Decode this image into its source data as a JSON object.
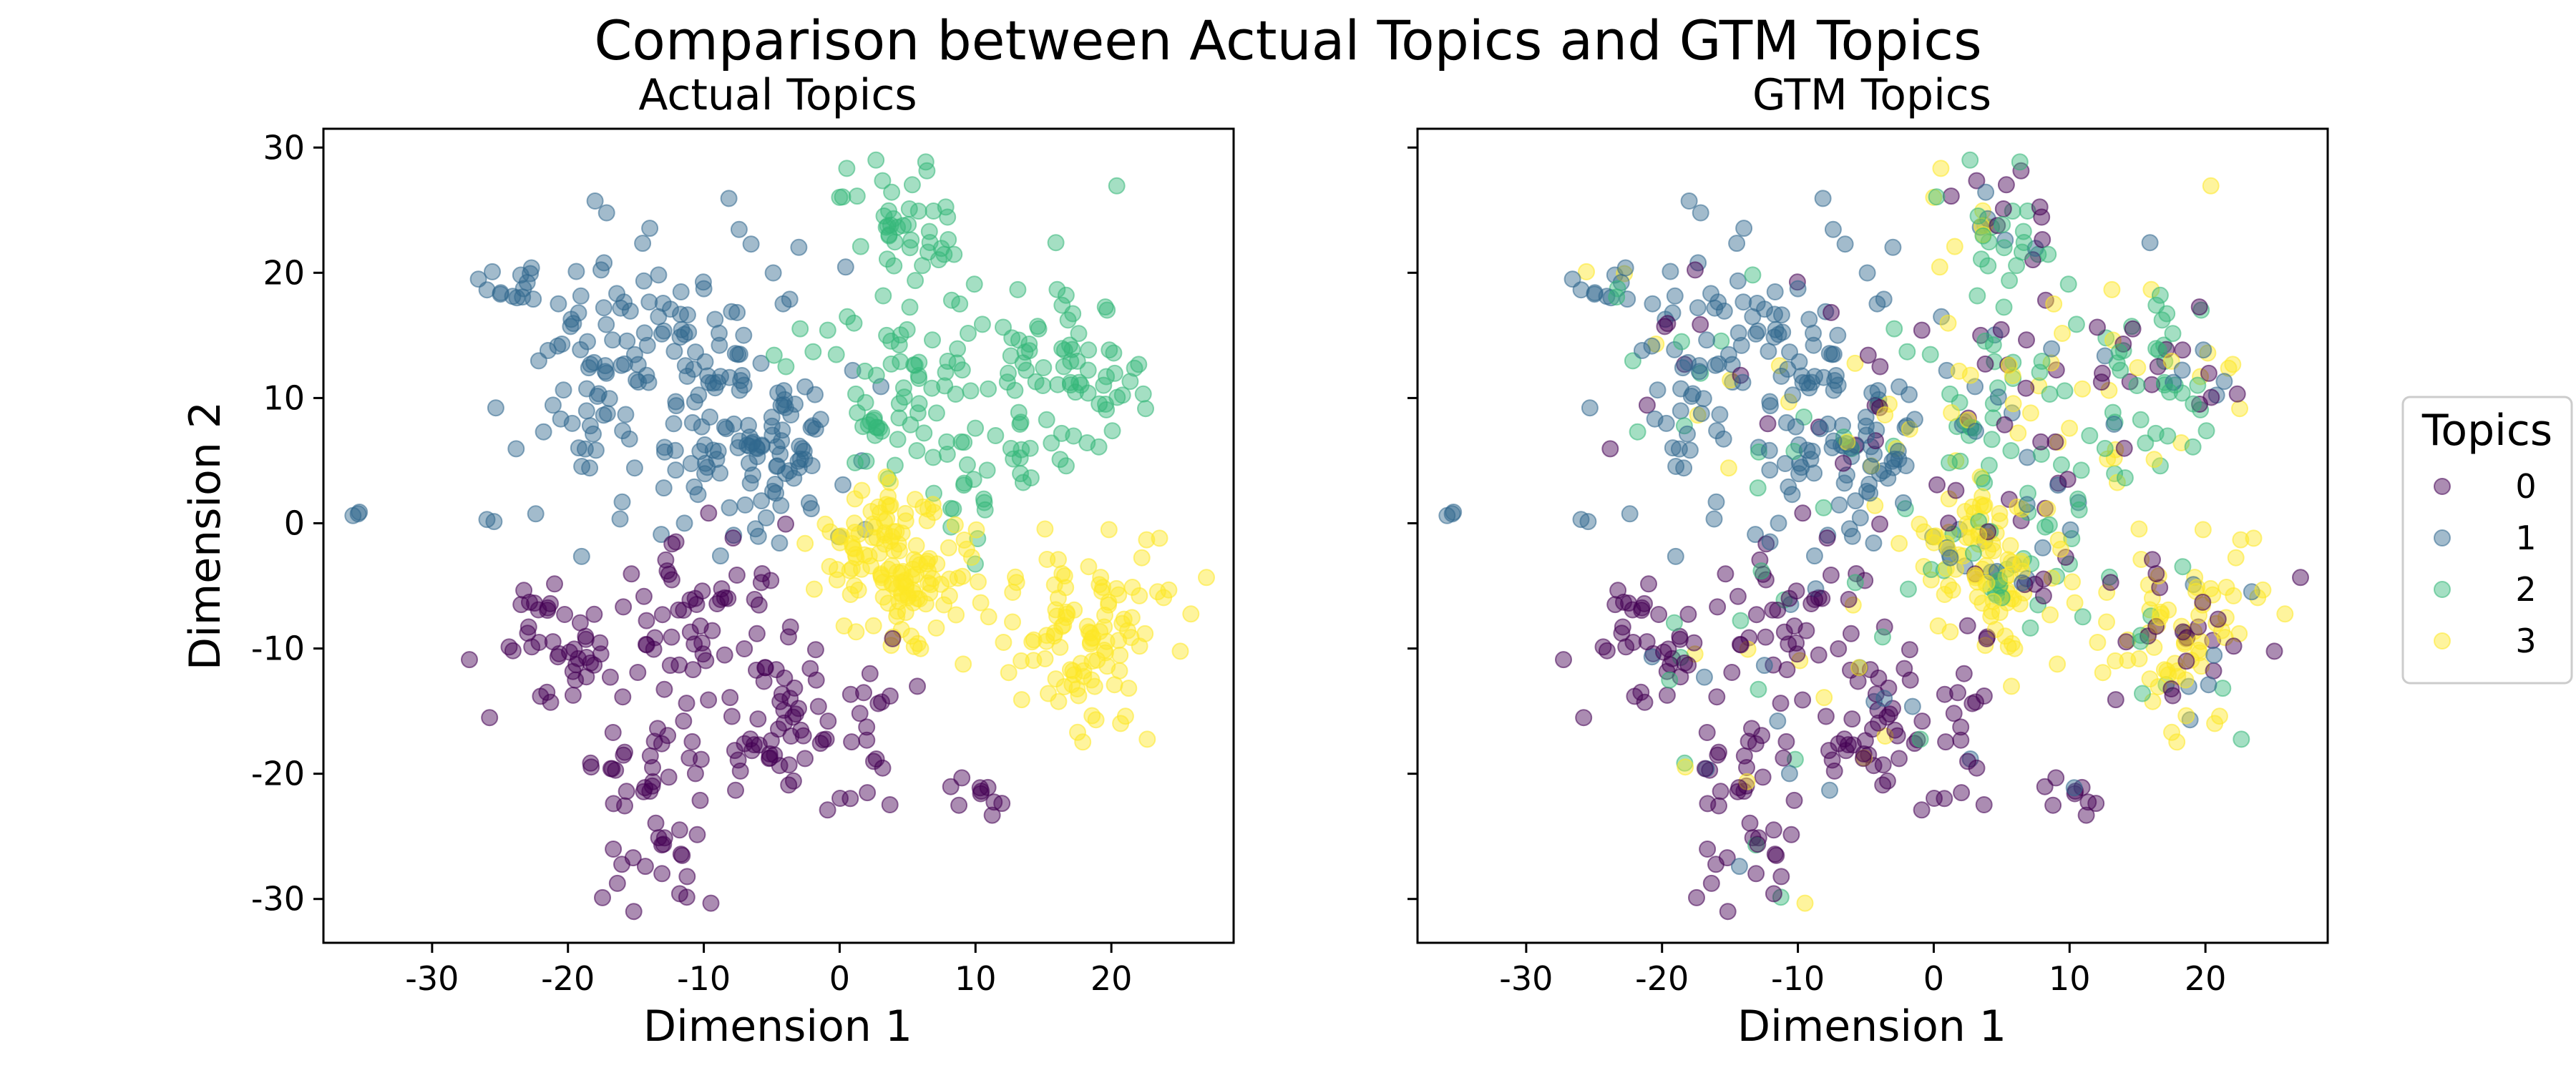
{
  "figure": {
    "suptitle": "Comparison between Actual Topics and GTM Topics"
  },
  "colors": {
    "topic_0": "#440154",
    "topic_1": "#31688e",
    "topic_2": "#35b779",
    "topic_3": "#fde725",
    "marker_alpha": 0.45
  },
  "chart_data": [
    {
      "type": "scatter",
      "title": "Actual Topics",
      "xlabel": "Dimension 1",
      "ylabel": "Dimension 2",
      "xlim": [
        -38,
        29
      ],
      "ylim": [
        -33.5,
        31.5
      ],
      "xticks": [
        -30,
        -20,
        -10,
        0,
        10,
        20
      ],
      "yticks": [
        -30,
        -20,
        -10,
        0,
        10,
        20,
        30
      ],
      "xtick_labels": [
        "-30",
        "-20",
        "-10",
        "0",
        "10",
        "20"
      ],
      "ytick_labels": [
        "-30",
        "-20",
        "-10",
        "0",
        "10",
        "20",
        "30"
      ],
      "grid": false,
      "color_by": "actual",
      "approximate_clusters": [
        {
          "topic": 1,
          "center": [
            -35.5,
            0.6
          ],
          "spread": [
            0.3,
            0.2
          ],
          "n": 3
        },
        {
          "topic": 1,
          "center": [
            -24,
            19
          ],
          "spread": [
            1.2,
            1.2
          ],
          "n": 14
        },
        {
          "topic": 1,
          "center": [
            -25.5,
            0.2
          ],
          "spread": [
            0.4,
            0.3
          ],
          "n": 2
        },
        {
          "topic": 1,
          "center": [
            -19,
            10
          ],
          "spread": [
            3,
            6
          ],
          "n": 45
        },
        {
          "topic": 1,
          "center": [
            -10,
            12
          ],
          "spread": [
            5,
            7
          ],
          "n": 90
        },
        {
          "topic": 1,
          "center": [
            -7,
            7
          ],
          "spread": [
            3,
            3
          ],
          "n": 60
        },
        {
          "topic": 1,
          "center": [
            -4,
            3
          ],
          "spread": [
            3,
            3
          ],
          "n": 30
        },
        {
          "topic": 2,
          "center": [
            4.5,
            24
          ],
          "spread": [
            2,
            2.5
          ],
          "n": 40
        },
        {
          "topic": 2,
          "center": [
            4,
            9
          ],
          "spread": [
            2.5,
            3
          ],
          "n": 45
        },
        {
          "topic": 2,
          "center": [
            17,
            12.5
          ],
          "spread": [
            3,
            3
          ],
          "n": 60
        },
        {
          "topic": 2,
          "center": [
            8,
            13
          ],
          "spread": [
            5,
            5
          ],
          "n": 40
        },
        {
          "topic": 2,
          "center": [
            12,
            3
          ],
          "spread": [
            3,
            2.5
          ],
          "n": 25
        },
        {
          "topic": 3,
          "center": [
            4,
            -3
          ],
          "spread": [
            3,
            3.5
          ],
          "n": 140
        },
        {
          "topic": 3,
          "center": [
            18,
            -10
          ],
          "spread": [
            2.5,
            3
          ],
          "n": 80
        },
        {
          "topic": 3,
          "center": [
            16,
            -5
          ],
          "spread": [
            4,
            2
          ],
          "n": 25
        },
        {
          "topic": 0,
          "center": [
            -20,
            -10.5
          ],
          "spread": [
            2.5,
            2.5
          ],
          "n": 45
        },
        {
          "topic": 0,
          "center": [
            -10,
            -8
          ],
          "spread": [
            4,
            4
          ],
          "n": 55
        },
        {
          "topic": 0,
          "center": [
            -6,
            -16
          ],
          "spread": [
            4,
            4
          ],
          "n": 50
        },
        {
          "topic": 0,
          "center": [
            -13,
            -27
          ],
          "spread": [
            2,
            2.5
          ],
          "n": 22
        },
        {
          "topic": 0,
          "center": [
            1,
            -17
          ],
          "spread": [
            3,
            3
          ],
          "n": 30
        },
        {
          "topic": 0,
          "center": [
            10,
            -21.5
          ],
          "spread": [
            1.2,
            0.8
          ],
          "n": 10
        },
        {
          "topic": 0,
          "center": [
            -15,
            -19.5
          ],
          "spread": [
            2,
            1.5
          ],
          "n": 15
        }
      ]
    },
    {
      "type": "scatter",
      "title": "GTM Topics",
      "xlabel": "Dimension 1",
      "ylabel": "",
      "xlim": [
        -38,
        29
      ],
      "ylim": [
        -33.5,
        31.5
      ],
      "xticks": [
        -30,
        -20,
        -10,
        0,
        10,
        20
      ],
      "yticks": [
        -30,
        -20,
        -10,
        0,
        10,
        20,
        30
      ],
      "xtick_labels": [
        "-30",
        "-20",
        "-10",
        "0",
        "10",
        "20"
      ],
      "ytick_labels": [
        "",
        "",
        "",
        "",
        "",
        "",
        ""
      ],
      "grid": false,
      "color_by": "gtm",
      "same_coordinates_as": "Actual Topics"
    }
  ],
  "legend": {
    "title": "Topics",
    "placement": "right",
    "entries": [
      {
        "label": "0",
        "topic": 0
      },
      {
        "label": "1",
        "topic": 1
      },
      {
        "label": "2",
        "topic": 2
      },
      {
        "label": "3",
        "topic": 3
      }
    ]
  }
}
